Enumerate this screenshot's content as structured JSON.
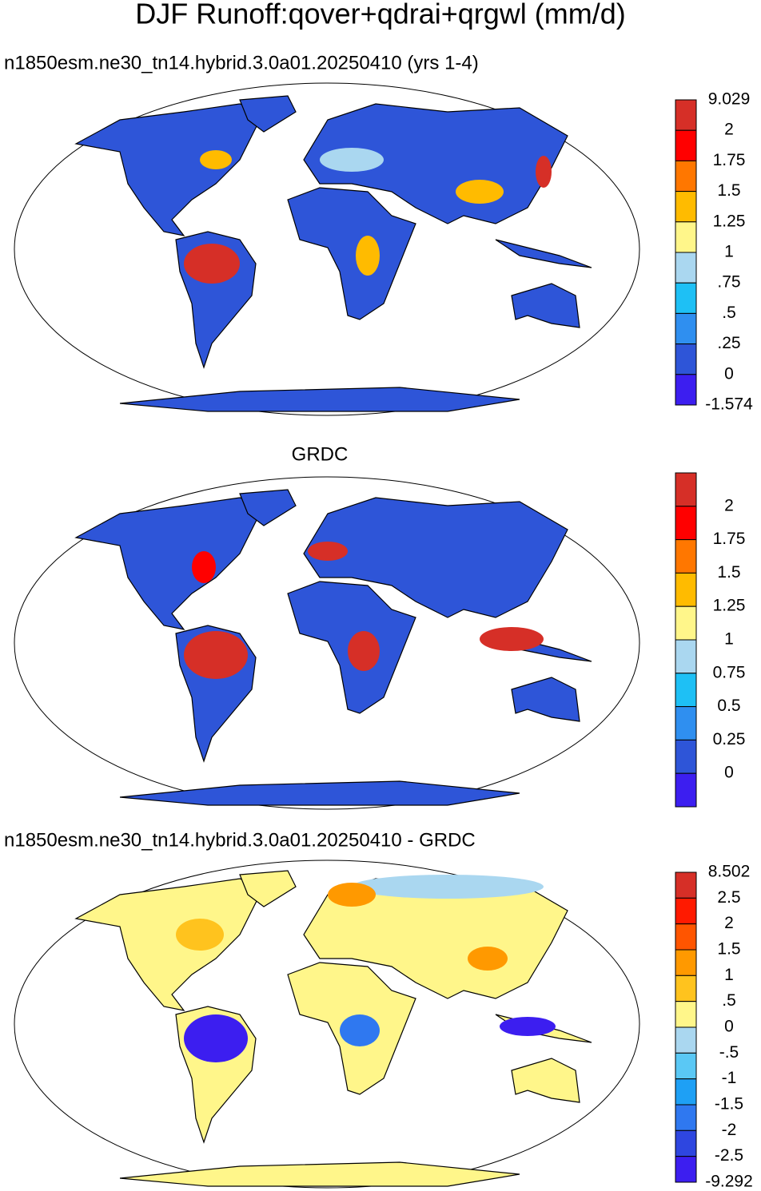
{
  "title": "DJF Runoff:qover+qdrai+qrgwl (mm/d)",
  "panels": [
    {
      "subtitle": "n1850esm.ne30_tn14.hybrid.3.0a01.20250410 (yrs 1-4)",
      "colorbar": {
        "labels": [
          "9.029",
          "2",
          "1.75",
          "1.5",
          "1.25",
          "1",
          ".75",
          ".5",
          ".25",
          "0",
          "-1.574"
        ],
        "colors": [
          "#d62f27",
          "#ff0000",
          "#ff7700",
          "#ffbb00",
          "#fff68a",
          "#aad7f0",
          "#1ec0f5",
          "#2f8ff0",
          "#2e55d8",
          "#3c1ef0"
        ]
      }
    },
    {
      "subtitle": "GRDC",
      "colorbar": {
        "labels": [
          "2",
          "1.75",
          "1.5",
          "1.25",
          "1",
          "0.75",
          "0.5",
          "0.25",
          "0"
        ],
        "colors": [
          "#d62f27",
          "#ff0000",
          "#ff7700",
          "#ffbb00",
          "#fff68a",
          "#aad7f0",
          "#1ec0f5",
          "#2f8ff0",
          "#2e55d8",
          "#3c1ef0"
        ]
      }
    },
    {
      "subtitle": "n1850esm.ne30_tn14.hybrid.3.0a01.20250410 - GRDC",
      "colorbar": {
        "labels": [
          "8.502",
          "2.5",
          "2",
          "1.5",
          "1",
          ".5",
          "0",
          "-.5",
          "-1",
          "-1.5",
          "-2",
          "-2.5",
          "-9.292"
        ],
        "colors": [
          "#d62f27",
          "#ff1a00",
          "#ff5500",
          "#ff9900",
          "#ffc31e",
          "#fff68a",
          "#aad7f0",
          "#5ac8f5",
          "#1ea0f5",
          "#2f78f0",
          "#2e46e0",
          "#3c1ef0"
        ]
      }
    }
  ]
}
